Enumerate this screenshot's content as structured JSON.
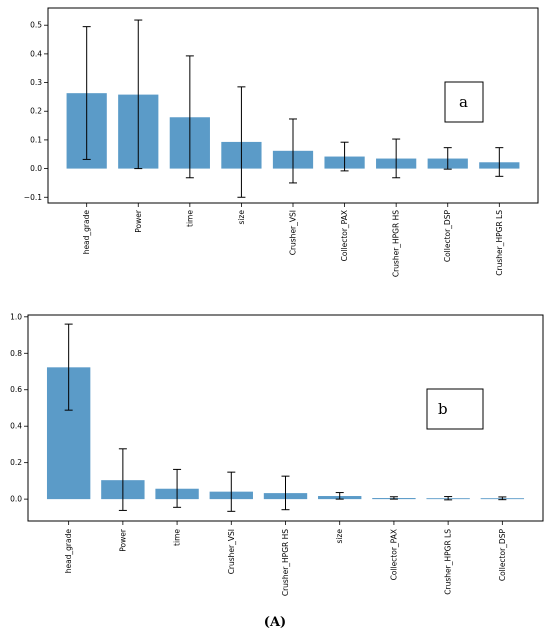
{
  "figure": {
    "caption": "(A)",
    "bar_color": "#5b9bc8"
  },
  "chart_data": [
    {
      "type": "bar",
      "panel_label": "a",
      "categories": [
        "head_grade",
        "Power",
        "time",
        "size",
        "Crusher_VSI",
        "Collector_PAX",
        "Crusher_HPGR HS",
        "Collector_DSP",
        "Crusher_HPGR LS"
      ],
      "values": [
        0.263,
        0.258,
        0.179,
        0.093,
        0.062,
        0.042,
        0.035,
        0.035,
        0.022
      ],
      "error_low": [
        0.032,
        0.0,
        -0.032,
        -0.1,
        -0.05,
        -0.008,
        -0.032,
        -0.002,
        -0.027
      ],
      "error_high": [
        0.495,
        0.518,
        0.393,
        0.285,
        0.173,
        0.092,
        0.103,
        0.073,
        0.073
      ],
      "ylim": [
        -0.12,
        0.56
      ],
      "yticks": [
        -0.1,
        0.0,
        0.1,
        0.2,
        0.3,
        0.4,
        0.5
      ],
      "ytick_labels": [
        "−0.1",
        "0.0",
        "0.1",
        "0.2",
        "0.3",
        "0.4",
        "0.5"
      ],
      "grid": false,
      "legend": "none"
    },
    {
      "type": "bar",
      "panel_label": "b",
      "categories": [
        "head_grade",
        "Power",
        "time",
        "Crusher_VSI",
        "Crusher_HPGR HS",
        "size",
        "Collector_PAX",
        "Crusher_HPGR LS",
        "Collector_DSP"
      ],
      "values": [
        0.723,
        0.104,
        0.057,
        0.041,
        0.033,
        0.017,
        0.006,
        0.005,
        0.005
      ],
      "error_low": [
        0.488,
        -0.062,
        -0.045,
        -0.067,
        -0.058,
        0.0,
        0.0,
        -0.004,
        -0.003
      ],
      "error_high": [
        0.96,
        0.276,
        0.163,
        0.148,
        0.126,
        0.036,
        0.013,
        0.014,
        0.012
      ],
      "ylim": [
        -0.12,
        1.01
      ],
      "yticks": [
        0.0,
        0.2,
        0.4,
        0.6,
        0.8,
        1.0
      ],
      "ytick_labels": [
        "0.0",
        "0.2",
        "0.4",
        "0.6",
        "0.8",
        "1.0"
      ],
      "grid": false,
      "legend": "none"
    }
  ]
}
